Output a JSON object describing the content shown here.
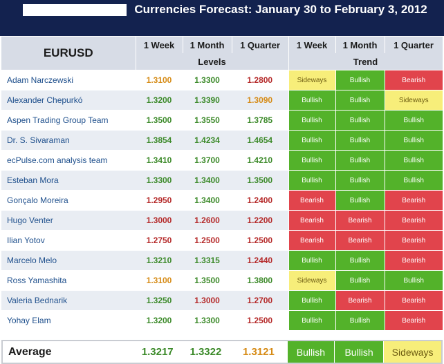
{
  "title": "Currencies Forecast: January 30 to February 3, 2012",
  "headers": {
    "pair": "EURUSD",
    "levels_cols": [
      "1 Week",
      "1 Month",
      "1 Quarter"
    ],
    "trend_cols": [
      "1 Week",
      "1 Month",
      "1 Quarter"
    ],
    "levels_group": "Levels",
    "trend_group": "Trend"
  },
  "colors": {
    "banner": "#13224f",
    "bullish": "#53b22a",
    "bearish": "#e1444c",
    "sideways": "#f7ee7a",
    "level_green": "#3c8a2a",
    "level_red": "#b52a2a",
    "level_orange": "#d68b16"
  },
  "rows": [
    {
      "name": "Adam Narczewski",
      "levels": [
        "1.3100",
        "1.3300",
        "1.2800"
      ],
      "level_colors": [
        "orange",
        "green",
        "red"
      ],
      "trend": [
        "Sideways",
        "Bullish",
        "Bearish"
      ]
    },
    {
      "name": "Alexander Chepurkó",
      "levels": [
        "1.3200",
        "1.3390",
        "1.3090"
      ],
      "level_colors": [
        "green",
        "green",
        "orange"
      ],
      "trend": [
        "Bullish",
        "Bullish",
        "Sideways"
      ]
    },
    {
      "name": "Aspen Trading Group Team",
      "levels": [
        "1.3500",
        "1.3550",
        "1.3785"
      ],
      "level_colors": [
        "green",
        "green",
        "green"
      ],
      "trend": [
        "Bullish",
        "Bullish",
        "Bullish"
      ]
    },
    {
      "name": "Dr. S. Sivaraman",
      "levels": [
        "1.3854",
        "1.4234",
        "1.4654"
      ],
      "level_colors": [
        "green",
        "green",
        "green"
      ],
      "trend": [
        "Bullish",
        "Bullish",
        "Bullish"
      ]
    },
    {
      "name": "ecPulse.com analysis team",
      "levels": [
        "1.3410",
        "1.3700",
        "1.4210"
      ],
      "level_colors": [
        "green",
        "green",
        "green"
      ],
      "trend": [
        "Bullish",
        "Bullish",
        "Bullish"
      ]
    },
    {
      "name": "Esteban Mora",
      "levels": [
        "1.3300",
        "1.3400",
        "1.3500"
      ],
      "level_colors": [
        "green",
        "green",
        "green"
      ],
      "trend": [
        "Bullish",
        "Bullish",
        "Bullish"
      ]
    },
    {
      "name": "Gonçalo Moreira",
      "levels": [
        "1.2950",
        "1.3400",
        "1.2400"
      ],
      "level_colors": [
        "red",
        "green",
        "red"
      ],
      "trend": [
        "Bearish",
        "Bullish",
        "Bearish"
      ]
    },
    {
      "name": "Hugo Venter",
      "levels": [
        "1.3000",
        "1.2600",
        "1.2200"
      ],
      "level_colors": [
        "red",
        "red",
        "red"
      ],
      "trend": [
        "Bearish",
        "Bearish",
        "Bearish"
      ]
    },
    {
      "name": "Ilian Yotov",
      "levels": [
        "1.2750",
        "1.2500",
        "1.2500"
      ],
      "level_colors": [
        "red",
        "red",
        "red"
      ],
      "trend": [
        "Bearish",
        "Bearish",
        "Bearish"
      ]
    },
    {
      "name": "Marcelo Melo",
      "levels": [
        "1.3210",
        "1.3315",
        "1.2440"
      ],
      "level_colors": [
        "green",
        "green",
        "red"
      ],
      "trend": [
        "Bullish",
        "Bullish",
        "Bearish"
      ]
    },
    {
      "name": "Ross Yamashita",
      "levels": [
        "1.3100",
        "1.3500",
        "1.3800"
      ],
      "level_colors": [
        "orange",
        "green",
        "green"
      ],
      "trend": [
        "Sideways",
        "Bullish",
        "Bullish"
      ]
    },
    {
      "name": "Valeria Bednarik",
      "levels": [
        "1.3250",
        "1.3000",
        "1.2700"
      ],
      "level_colors": [
        "green",
        "red",
        "red"
      ],
      "trend": [
        "Bullish",
        "Bearish",
        "Bearish"
      ]
    },
    {
      "name": "Yohay Elam",
      "levels": [
        "1.3200",
        "1.3300",
        "1.2500"
      ],
      "level_colors": [
        "green",
        "green",
        "red"
      ],
      "trend": [
        "Bullish",
        "Bullish",
        "Bearish"
      ]
    }
  ],
  "average": {
    "label": "Average",
    "levels": [
      "1.3217",
      "1.3322",
      "1.3121"
    ],
    "level_colors": [
      "green",
      "green",
      "orange"
    ],
    "trend": [
      "Bullish",
      "Bullish",
      "Sideways"
    ]
  }
}
